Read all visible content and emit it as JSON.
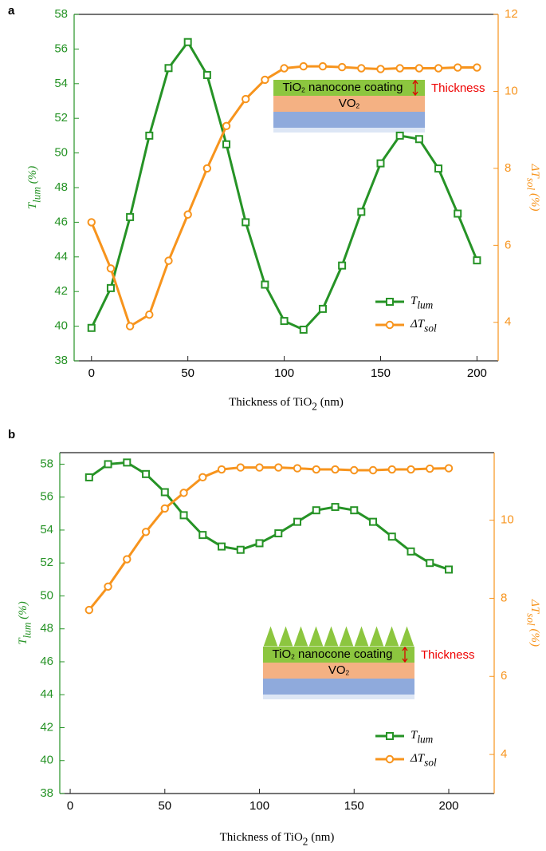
{
  "chart_data": [
    {
      "type": "line",
      "panel_label": "a",
      "xlabel": [
        "Thickness of TiO",
        "2",
        " (nm)"
      ],
      "ylabel": [
        "T",
        "lum",
        " (%)"
      ],
      "y2label": [
        "ΔT",
        "sol",
        " (%)"
      ],
      "x": [
        0,
        10,
        20,
        30,
        40,
        50,
        60,
        70,
        80,
        90,
        100,
        110,
        120,
        130,
        140,
        150,
        160,
        170,
        180,
        190,
        200
      ],
      "series": [
        {
          "name": [
            "T",
            "lum"
          ],
          "color": "#269326",
          "marker": "square",
          "values": [
            39.9,
            42.2,
            46.3,
            51.0,
            54.9,
            56.4,
            54.5,
            50.5,
            46.0,
            42.4,
            40.3,
            39.8,
            41.0,
            43.5,
            46.6,
            49.4,
            51.0,
            50.8,
            49.1,
            46.5,
            43.8
          ]
        },
        {
          "name": [
            "ΔT",
            "sol"
          ],
          "color": "#f7941d",
          "marker": "circle",
          "axis": "y2",
          "values": [
            6.6,
            5.4,
            3.9,
            4.2,
            5.6,
            6.8,
            8.0,
            9.1,
            9.8,
            10.3,
            10.6,
            10.65,
            10.65,
            10.63,
            10.6,
            10.58,
            10.6,
            10.6,
            10.6,
            10.62,
            10.62
          ]
        }
      ],
      "xlim": [
        -9,
        211
      ],
      "xticks": [
        0,
        50,
        100,
        150,
        200
      ],
      "ylim": [
        38,
        58
      ],
      "yticks": [
        38,
        40,
        42,
        44,
        46,
        48,
        50,
        52,
        54,
        56,
        58
      ],
      "y2lim": [
        3,
        12
      ],
      "y2ticks": [
        4,
        6,
        8,
        10,
        12
      ],
      "grid": false,
      "legend": "lower right",
      "inset": {
        "coating": [
          "TiO",
          "2",
          " nanocone coating"
        ],
        "layer": [
          "VO",
          "2"
        ],
        "thickness": "Thickness",
        "nanocones": false
      }
    },
    {
      "type": "line",
      "panel_label": "b",
      "xlabel": [
        "Thickness of TiO",
        "2",
        " (nm)"
      ],
      "ylabel": [
        "T",
        "lum",
        " (%)"
      ],
      "y2label": [
        "ΔT",
        "sol",
        " (%)"
      ],
      "x": [
        10,
        20,
        30,
        40,
        50,
        60,
        70,
        80,
        90,
        100,
        110,
        120,
        130,
        140,
        150,
        160,
        170,
        180,
        190,
        200
      ],
      "series": [
        {
          "name": [
            "T",
            "lum"
          ],
          "color": "#269326",
          "marker": "square",
          "values": [
            57.2,
            58.0,
            58.1,
            57.4,
            56.3,
            54.9,
            53.7,
            53.0,
            52.8,
            53.2,
            53.8,
            54.5,
            55.2,
            55.4,
            55.2,
            54.5,
            53.6,
            52.7,
            52.0,
            51.6
          ]
        },
        {
          "name": [
            "ΔT",
            "sol"
          ],
          "color": "#f7941d",
          "marker": "circle",
          "axis": "y2",
          "values": [
            7.7,
            8.3,
            9.0,
            9.7,
            10.3,
            10.7,
            11.1,
            11.3,
            11.35,
            11.35,
            11.35,
            11.33,
            11.3,
            11.3,
            11.28,
            11.28,
            11.3,
            11.3,
            11.32,
            11.33
          ]
        }
      ],
      "xlim": [
        -5.5,
        224
      ],
      "xticks": [
        0,
        50,
        100,
        150,
        200
      ],
      "ylim": [
        38,
        58.7
      ],
      "yticks": [
        38,
        40,
        42,
        44,
        46,
        48,
        50,
        52,
        54,
        56,
        58
      ],
      "y2lim": [
        3,
        11.73
      ],
      "y2ticks": [
        4,
        6,
        8,
        10
      ],
      "grid": false,
      "legend": "lower right",
      "inset": {
        "coating": [
          "TiO",
          "2",
          " nanocone coating"
        ],
        "layer": [
          "VO",
          "2"
        ],
        "thickness": "Thickness",
        "nanocones": true
      }
    }
  ]
}
